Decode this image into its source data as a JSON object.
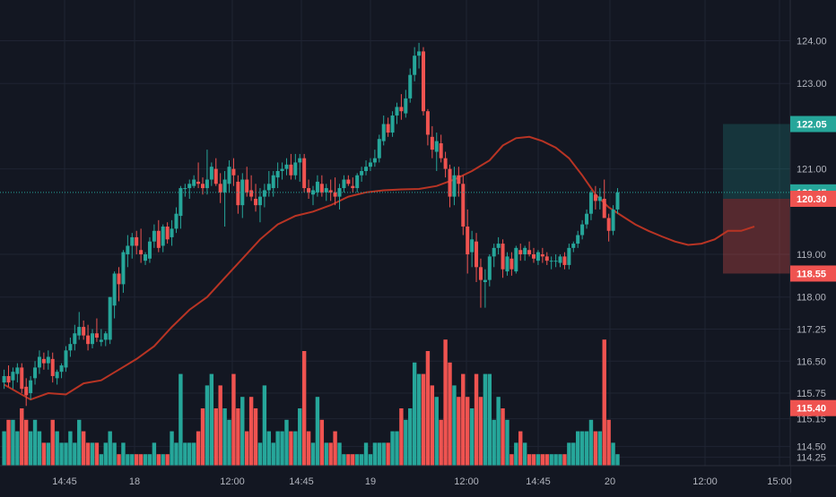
{
  "chart_data": {
    "type": "candlestick",
    "title": "",
    "x_axis": {
      "tick_labels": [
        "14:45",
        "18",
        "12:00",
        "14:45",
        "19",
        "12:00",
        "14:45",
        "20",
        "12:00",
        "15:00"
      ]
    },
    "y_axis": {
      "ylim": [
        114.25,
        124.4
      ],
      "tick_labels": [
        124.0,
        123.0,
        121.0,
        119.0,
        118.0,
        117.25,
        116.5,
        115.75,
        115.15,
        114.5,
        114.25
      ]
    },
    "price_labels": [
      {
        "value": 122.05,
        "text": "122.05",
        "color": "#26a69a"
      },
      {
        "value": 120.45,
        "text": "120.45",
        "color": "#26a69a"
      },
      {
        "value": 120.3,
        "text": "120.30",
        "color": "#ef5350"
      },
      {
        "value": 118.55,
        "text": "118.55",
        "color": "#ef5350"
      },
      {
        "value": 115.4,
        "text": "115.40",
        "color": "#ef5350"
      }
    ],
    "current_price": 120.45,
    "position_box": {
      "entry": 120.3,
      "target": 122.05,
      "stop": 118.55
    },
    "colors": {
      "up": "#26a69a",
      "down": "#ef5350",
      "ma": "#b83424",
      "background": "#131722",
      "grid": "#1f2433"
    },
    "grid": true,
    "candles": [
      [
        116.0,
        116.3,
        115.85,
        116.15,
        3
      ],
      [
        116.15,
        116.4,
        115.9,
        116.0,
        4
      ],
      [
        116.05,
        116.35,
        115.85,
        116.25,
        4
      ],
      [
        116.2,
        116.45,
        116.0,
        116.35,
        3
      ],
      [
        116.35,
        116.45,
        115.75,
        115.85,
        5
      ],
      [
        115.9,
        116.1,
        115.45,
        115.7,
        4
      ],
      [
        115.75,
        116.15,
        115.6,
        116.05,
        3
      ],
      [
        116.1,
        116.5,
        115.95,
        116.35,
        4
      ],
      [
        116.35,
        116.75,
        116.2,
        116.6,
        3
      ],
      [
        116.55,
        116.7,
        116.3,
        116.45,
        2
      ],
      [
        116.45,
        116.75,
        116.3,
        116.6,
        2
      ],
      [
        116.55,
        116.7,
        116.0,
        116.15,
        4
      ],
      [
        116.1,
        116.3,
        115.95,
        116.25,
        3
      ],
      [
        116.25,
        116.45,
        116.1,
        116.4,
        2
      ],
      [
        116.35,
        116.85,
        116.25,
        116.75,
        2
      ],
      [
        116.75,
        117.05,
        116.6,
        116.9,
        3
      ],
      [
        116.9,
        117.35,
        116.75,
        117.15,
        2
      ],
      [
        117.1,
        117.65,
        117.0,
        117.3,
        4
      ],
      [
        117.3,
        117.45,
        117.0,
        117.1,
        3
      ],
      [
        117.1,
        117.35,
        116.75,
        116.9,
        2
      ],
      [
        116.9,
        117.25,
        116.8,
        117.15,
        2
      ],
      [
        117.15,
        117.5,
        116.95,
        117.05,
        2
      ],
      [
        116.95,
        117.25,
        116.85,
        117.0,
        1
      ],
      [
        117.0,
        117.2,
        116.85,
        117.15,
        2
      ],
      [
        117.0,
        118.0,
        116.9,
        118.0,
        3
      ],
      [
        117.8,
        118.6,
        117.5,
        118.55,
        2
      ],
      [
        118.55,
        118.7,
        117.9,
        118.3,
        1
      ],
      [
        118.3,
        119.1,
        118.1,
        119.05,
        2
      ],
      [
        119.0,
        119.45,
        118.7,
        119.2,
        1
      ],
      [
        119.2,
        119.5,
        118.9,
        119.4,
        1
      ],
      [
        119.4,
        119.55,
        119.0,
        119.2,
        1
      ],
      [
        119.1,
        119.6,
        118.8,
        119.0,
        1
      ],
      [
        118.85,
        119.05,
        118.75,
        119.0,
        1
      ],
      [
        118.9,
        119.4,
        118.8,
        119.3,
        1
      ],
      [
        119.3,
        119.7,
        119.15,
        119.55,
        2
      ],
      [
        119.55,
        119.8,
        119.05,
        119.15,
        1
      ],
      [
        119.2,
        119.7,
        119.05,
        119.65,
        1
      ],
      [
        119.65,
        119.75,
        119.25,
        119.35,
        1
      ],
      [
        119.4,
        119.8,
        119.2,
        119.6,
        3
      ],
      [
        119.6,
        120.1,
        119.5,
        119.95,
        2
      ],
      [
        119.9,
        120.6,
        119.6,
        120.55,
        8
      ],
      [
        120.55,
        120.65,
        120.35,
        120.55,
        2
      ],
      [
        120.55,
        120.75,
        120.3,
        120.65,
        2
      ],
      [
        120.6,
        120.85,
        120.55,
        120.75,
        2
      ],
      [
        120.7,
        121.15,
        120.55,
        120.65,
        3
      ],
      [
        120.65,
        120.8,
        120.4,
        120.55,
        5
      ],
      [
        120.55,
        121.45,
        120.4,
        120.75,
        7
      ],
      [
        120.75,
        121.15,
        120.6,
        121.05,
        8
      ],
      [
        121.0,
        121.25,
        120.6,
        120.65,
        5
      ],
      [
        120.65,
        120.9,
        120.2,
        120.45,
        7
      ],
      [
        120.45,
        120.95,
        119.65,
        120.75,
        5
      ],
      [
        120.65,
        121.2,
        120.45,
        121.05,
        4
      ],
      [
        121.0,
        121.25,
        120.6,
        120.85,
        8
      ],
      [
        120.7,
        120.85,
        119.95,
        120.15,
        5
      ],
      [
        120.15,
        120.9,
        119.85,
        120.75,
        6
      ],
      [
        120.75,
        121.05,
        120.35,
        120.45,
        3
      ],
      [
        120.5,
        120.85,
        120.25,
        120.35,
        6
      ],
      [
        120.3,
        120.65,
        120.0,
        120.15,
        5
      ],
      [
        120.15,
        120.55,
        119.75,
        120.35,
        2
      ],
      [
        120.35,
        120.65,
        120.1,
        120.5,
        7
      ],
      [
        120.5,
        120.95,
        120.35,
        120.65,
        3
      ],
      [
        120.55,
        120.95,
        120.35,
        120.85,
        2
      ],
      [
        120.8,
        121.15,
        120.55,
        120.95,
        3
      ],
      [
        120.95,
        121.15,
        120.75,
        121.0,
        3
      ],
      [
        121.0,
        121.25,
        120.85,
        121.1,
        4
      ],
      [
        121.1,
        121.35,
        120.75,
        120.85,
        3
      ],
      [
        120.85,
        121.35,
        120.75,
        121.15,
        3
      ],
      [
        121.15,
        121.35,
        120.7,
        121.25,
        5
      ],
      [
        121.25,
        121.35,
        120.45,
        120.55,
        10
      ],
      [
        120.55,
        120.75,
        120.3,
        120.45,
        3
      ],
      [
        120.4,
        120.6,
        120.15,
        120.5,
        2
      ],
      [
        120.45,
        120.85,
        120.35,
        120.7,
        6
      ],
      [
        120.65,
        120.85,
        120.35,
        120.45,
        4
      ],
      [
        120.45,
        120.65,
        120.25,
        120.55,
        2
      ],
      [
        120.5,
        120.75,
        120.25,
        120.45,
        2
      ],
      [
        120.45,
        120.8,
        120.15,
        120.35,
        3
      ],
      [
        120.35,
        120.65,
        120.05,
        120.55,
        2
      ],
      [
        120.55,
        120.85,
        120.45,
        120.75,
        1
      ],
      [
        120.75,
        120.85,
        120.6,
        120.65,
        1
      ],
      [
        120.6,
        120.8,
        120.45,
        120.55,
        1
      ],
      [
        120.55,
        120.9,
        120.45,
        120.85,
        1
      ],
      [
        120.85,
        121.05,
        120.7,
        120.95,
        1
      ],
      [
        120.95,
        121.2,
        120.85,
        121.05,
        2
      ],
      [
        121.05,
        121.25,
        120.95,
        121.15,
        1
      ],
      [
        121.15,
        121.45,
        121.05,
        121.25,
        2
      ],
      [
        121.25,
        121.8,
        121.15,
        121.7,
        2
      ],
      [
        121.65,
        122.25,
        121.55,
        122.05,
        2
      ],
      [
        122.05,
        122.2,
        121.75,
        121.85,
        2
      ],
      [
        121.85,
        122.35,
        121.75,
        122.25,
        3
      ],
      [
        122.25,
        122.55,
        122.05,
        122.45,
        3
      ],
      [
        122.45,
        122.75,
        122.15,
        122.35,
        5
      ],
      [
        122.3,
        122.85,
        122.2,
        122.65,
        4
      ],
      [
        122.65,
        123.35,
        122.55,
        123.2,
        5
      ],
      [
        123.2,
        123.85,
        123.05,
        123.65,
        9
      ],
      [
        123.65,
        123.95,
        123.35,
        123.75,
        8
      ],
      [
        123.75,
        123.85,
        122.25,
        122.35,
        8
      ],
      [
        122.35,
        122.4,
        121.55,
        121.8,
        10
      ],
      [
        121.75,
        122.0,
        121.25,
        121.45,
        7
      ],
      [
        121.4,
        121.85,
        120.95,
        121.65,
        6
      ],
      [
        121.6,
        121.8,
        121.15,
        121.25,
        4
      ],
      [
        121.25,
        121.4,
        120.8,
        121.0,
        11
      ],
      [
        121.0,
        121.1,
        120.1,
        120.35,
        9
      ],
      [
        120.35,
        121.05,
        120.15,
        120.85,
        7
      ],
      [
        120.85,
        121.05,
        120.35,
        120.65,
        6
      ],
      [
        120.65,
        120.85,
        119.45,
        119.65,
        8
      ],
      [
        119.65,
        120.05,
        118.55,
        119.0,
        6
      ],
      [
        119.05,
        119.55,
        118.7,
        119.35,
        5
      ],
      [
        119.3,
        119.5,
        118.35,
        118.7,
        8
      ],
      [
        118.7,
        118.9,
        117.75,
        118.4,
        6
      ],
      [
        118.35,
        118.65,
        117.75,
        118.4,
        8
      ],
      [
        118.4,
        119.0,
        118.25,
        118.95,
        8
      ],
      [
        118.95,
        119.25,
        118.7,
        119.15,
        4
      ],
      [
        119.15,
        119.4,
        119.0,
        119.25,
        6
      ],
      [
        119.25,
        119.35,
        118.45,
        118.65,
        5
      ],
      [
        118.6,
        119.05,
        118.5,
        118.95,
        4
      ],
      [
        118.9,
        119.05,
        118.5,
        118.65,
        1
      ],
      [
        118.6,
        119.2,
        118.55,
        119.15,
        2
      ],
      [
        119.1,
        119.25,
        118.85,
        119.0,
        3
      ],
      [
        119.0,
        119.2,
        118.85,
        119.15,
        2
      ],
      [
        119.1,
        119.3,
        118.95,
        119.0,
        1
      ],
      [
        119.0,
        119.15,
        118.8,
        118.9,
        1
      ],
      [
        118.85,
        119.1,
        118.75,
        119.05,
        1
      ],
      [
        119.0,
        119.15,
        118.8,
        118.95,
        1
      ],
      [
        118.95,
        119.05,
        118.75,
        118.85,
        1
      ],
      [
        118.85,
        118.95,
        118.65,
        118.85,
        1
      ],
      [
        118.85,
        119.0,
        118.7,
        118.85,
        1
      ],
      [
        118.8,
        119.0,
        118.7,
        118.95,
        1
      ],
      [
        118.95,
        119.05,
        118.65,
        118.75,
        1
      ],
      [
        118.75,
        119.25,
        118.65,
        119.15,
        2
      ],
      [
        119.15,
        119.3,
        119.05,
        119.25,
        2
      ],
      [
        119.25,
        119.55,
        119.15,
        119.45,
        3
      ],
      [
        119.45,
        119.8,
        119.35,
        119.7,
        3
      ],
      [
        119.7,
        120.05,
        119.6,
        119.95,
        3
      ],
      [
        119.95,
        120.5,
        119.8,
        120.45,
        4
      ],
      [
        120.4,
        120.6,
        120.05,
        120.25,
        3
      ],
      [
        120.25,
        120.55,
        120.05,
        120.35,
        3
      ],
      [
        120.3,
        120.75,
        119.85,
        119.85,
        11
      ],
      [
        119.85,
        119.95,
        119.3,
        119.55,
        4
      ],
      [
        119.55,
        120.15,
        119.45,
        120.05,
        2
      ],
      [
        120.05,
        120.55,
        119.95,
        120.45,
        1
      ]
    ],
    "ma_line": [
      [
        0,
        115.95
      ],
      [
        6,
        115.6
      ],
      [
        10,
        115.75
      ],
      [
        14,
        115.72
      ],
      [
        18,
        115.98
      ],
      [
        22,
        116.05
      ],
      [
        26,
        116.3
      ],
      [
        30,
        116.55
      ],
      [
        34,
        116.85
      ],
      [
        38,
        117.3
      ],
      [
        42,
        117.7
      ],
      [
        46,
        118.0
      ],
      [
        50,
        118.45
      ],
      [
        54,
        118.9
      ],
      [
        58,
        119.35
      ],
      [
        62,
        119.7
      ],
      [
        66,
        119.9
      ],
      [
        70,
        120.0
      ],
      [
        74,
        120.15
      ],
      [
        78,
        120.35
      ],
      [
        82,
        120.45
      ],
      [
        86,
        120.5
      ],
      [
        90,
        120.52
      ],
      [
        94,
        120.53
      ],
      [
        98,
        120.6
      ],
      [
        102,
        120.75
      ],
      [
        106,
        120.95
      ],
      [
        110,
        121.2
      ],
      [
        113,
        121.55
      ],
      [
        116,
        121.72
      ],
      [
        119,
        121.75
      ],
      [
        122,
        121.65
      ],
      [
        125,
        121.5
      ],
      [
        128,
        121.25
      ],
      [
        131,
        120.85
      ],
      [
        134,
        120.4
      ],
      [
        137,
        120.1
      ],
      [
        140,
        119.9
      ],
      [
        143,
        119.7
      ],
      [
        146,
        119.55
      ],
      [
        149,
        119.42
      ],
      [
        152,
        119.3
      ],
      [
        155,
        119.22
      ],
      [
        158,
        119.25
      ],
      [
        161,
        119.35
      ],
      [
        164,
        119.55
      ],
      [
        167,
        119.55
      ],
      [
        170,
        119.65
      ]
    ]
  }
}
